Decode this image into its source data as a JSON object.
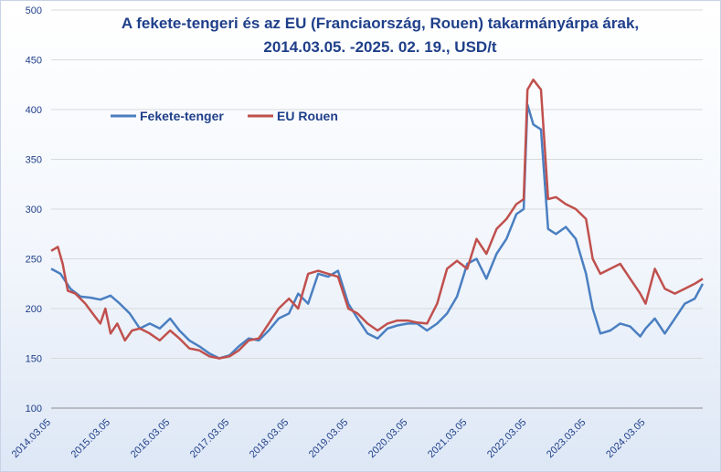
{
  "chart_data": {
    "type": "line",
    "title": "A fekete-tengeri és az EU (Franciaország, Rouen) takarmányárpa árak,",
    "subtitle": "2014.03.05. -2025. 02. 19.,  USD/t",
    "xlabel": "",
    "ylabel": "",
    "ylim": [
      100,
      500
    ],
    "yticks": [
      100,
      150,
      200,
      250,
      300,
      350,
      400,
      450,
      500
    ],
    "xticks": [
      "2014.03.05",
      "2015.03.05",
      "2016.03.05",
      "2017.03.05",
      "2018.03.05",
      "2019.03.05",
      "2020.03.05",
      "2021.03.05",
      "2022.03.05",
      "2023.03.05",
      "2024.03.05"
    ],
    "xlim": [
      "2014.03.05",
      "2025.02.19"
    ],
    "grid": "horizontal",
    "legend_position": "top-left",
    "series": [
      {
        "name": "Fekete-tenger",
        "color": "#4a7fc1",
        "points": [
          [
            "2014.03.05",
            240
          ],
          [
            "2014.05.01",
            235
          ],
          [
            "2014.07.01",
            220
          ],
          [
            "2014.09.01",
            212
          ],
          [
            "2014.11.01",
            211
          ],
          [
            "2015.01.01",
            209
          ],
          [
            "2015.03.05",
            213
          ],
          [
            "2015.05.01",
            205
          ],
          [
            "2015.07.01",
            195
          ],
          [
            "2015.09.01",
            180
          ],
          [
            "2015.11.01",
            185
          ],
          [
            "2016.01.01",
            180
          ],
          [
            "2016.03.05",
            190
          ],
          [
            "2016.05.01",
            178
          ],
          [
            "2016.07.01",
            168
          ],
          [
            "2016.09.01",
            162
          ],
          [
            "2016.11.01",
            155
          ],
          [
            "2017.01.01",
            150
          ],
          [
            "2017.03.05",
            153
          ],
          [
            "2017.05.01",
            162
          ],
          [
            "2017.07.01",
            170
          ],
          [
            "2017.09.01",
            168
          ],
          [
            "2017.11.01",
            178
          ],
          [
            "2018.01.01",
            190
          ],
          [
            "2018.03.05",
            195
          ],
          [
            "2018.05.01",
            215
          ],
          [
            "2018.07.01",
            205
          ],
          [
            "2018.09.01",
            235
          ],
          [
            "2018.11.01",
            232
          ],
          [
            "2019.01.01",
            238
          ],
          [
            "2019.03.05",
            205
          ],
          [
            "2019.05.01",
            190
          ],
          [
            "2019.07.01",
            175
          ],
          [
            "2019.09.01",
            170
          ],
          [
            "2019.11.01",
            180
          ],
          [
            "2020.01.01",
            183
          ],
          [
            "2020.03.05",
            185
          ],
          [
            "2020.05.01",
            185
          ],
          [
            "2020.07.01",
            178
          ],
          [
            "2020.09.01",
            185
          ],
          [
            "2020.11.01",
            195
          ],
          [
            "2021.01.01",
            212
          ],
          [
            "2021.03.05",
            245
          ],
          [
            "2021.05.01",
            250
          ],
          [
            "2021.07.01",
            230
          ],
          [
            "2021.09.01",
            255
          ],
          [
            "2021.11.01",
            270
          ],
          [
            "2022.01.01",
            295
          ],
          [
            "2022.02.15",
            300
          ],
          [
            "2022.03.10",
            405
          ],
          [
            "2022.04.15",
            385
          ],
          [
            "2022.06.01",
            380
          ],
          [
            "2022.07.15",
            280
          ],
          [
            "2022.09.01",
            275
          ],
          [
            "2022.11.01",
            282
          ],
          [
            "2023.01.01",
            270
          ],
          [
            "2023.03.05",
            235
          ],
          [
            "2023.04.15",
            200
          ],
          [
            "2023.06.01",
            175
          ],
          [
            "2023.08.01",
            178
          ],
          [
            "2023.10.01",
            185
          ],
          [
            "2023.12.01",
            182
          ],
          [
            "2024.02.01",
            172
          ],
          [
            "2024.03.05",
            180
          ],
          [
            "2024.05.01",
            190
          ],
          [
            "2024.07.01",
            175
          ],
          [
            "2024.09.01",
            190
          ],
          [
            "2024.11.01",
            205
          ],
          [
            "2025.01.01",
            210
          ],
          [
            "2025.02.19",
            225
          ]
        ]
      },
      {
        "name": "EU Rouen",
        "color": "#c0504d",
        "points": [
          [
            "2014.03.05",
            258
          ],
          [
            "2014.04.15",
            262
          ],
          [
            "2014.05.15",
            245
          ],
          [
            "2014.06.15",
            218
          ],
          [
            "2014.08.01",
            215
          ],
          [
            "2014.10.01",
            205
          ],
          [
            "2014.11.15",
            195
          ],
          [
            "2015.01.01",
            185
          ],
          [
            "2015.02.01",
            200
          ],
          [
            "2015.03.05",
            175
          ],
          [
            "2015.04.15",
            185
          ],
          [
            "2015.06.01",
            168
          ],
          [
            "2015.07.15",
            178
          ],
          [
            "2015.09.01",
            180
          ],
          [
            "2015.11.01",
            175
          ],
          [
            "2016.01.01",
            168
          ],
          [
            "2016.03.05",
            178
          ],
          [
            "2016.05.01",
            170
          ],
          [
            "2016.07.01",
            160
          ],
          [
            "2016.09.01",
            158
          ],
          [
            "2016.11.01",
            152
          ],
          [
            "2017.01.01",
            150
          ],
          [
            "2017.03.05",
            152
          ],
          [
            "2017.05.01",
            158
          ],
          [
            "2017.07.01",
            168
          ],
          [
            "2017.09.01",
            170
          ],
          [
            "2017.11.01",
            185
          ],
          [
            "2018.01.01",
            200
          ],
          [
            "2018.03.05",
            210
          ],
          [
            "2018.05.01",
            200
          ],
          [
            "2018.07.01",
            235
          ],
          [
            "2018.09.01",
            238
          ],
          [
            "2018.11.01",
            235
          ],
          [
            "2019.01.01",
            232
          ],
          [
            "2019.03.05",
            200
          ],
          [
            "2019.05.01",
            195
          ],
          [
            "2019.07.01",
            185
          ],
          [
            "2019.09.01",
            178
          ],
          [
            "2019.11.01",
            185
          ],
          [
            "2020.01.01",
            188
          ],
          [
            "2020.03.05",
            188
          ],
          [
            "2020.05.01",
            186
          ],
          [
            "2020.07.01",
            185
          ],
          [
            "2020.09.01",
            205
          ],
          [
            "2020.11.01",
            240
          ],
          [
            "2021.01.01",
            248
          ],
          [
            "2021.03.05",
            240
          ],
          [
            "2021.05.01",
            270
          ],
          [
            "2021.07.01",
            255
          ],
          [
            "2021.09.01",
            280
          ],
          [
            "2021.11.01",
            290
          ],
          [
            "2022.01.01",
            305
          ],
          [
            "2022.02.15",
            310
          ],
          [
            "2022.03.10",
            420
          ],
          [
            "2022.04.15",
            430
          ],
          [
            "2022.06.01",
            420
          ],
          [
            "2022.07.15",
            310
          ],
          [
            "2022.09.01",
            312
          ],
          [
            "2022.11.01",
            305
          ],
          [
            "2023.01.01",
            300
          ],
          [
            "2023.03.05",
            290
          ],
          [
            "2023.04.15",
            250
          ],
          [
            "2023.06.01",
            235
          ],
          [
            "2023.08.01",
            240
          ],
          [
            "2023.10.01",
            245
          ],
          [
            "2023.12.01",
            230
          ],
          [
            "2024.02.01",
            215
          ],
          [
            "2024.03.05",
            205
          ],
          [
            "2024.05.01",
            240
          ],
          [
            "2024.07.01",
            220
          ],
          [
            "2024.09.01",
            215
          ],
          [
            "2024.11.01",
            220
          ],
          [
            "2025.01.01",
            225
          ],
          [
            "2025.02.19",
            230
          ]
        ]
      }
    ]
  }
}
